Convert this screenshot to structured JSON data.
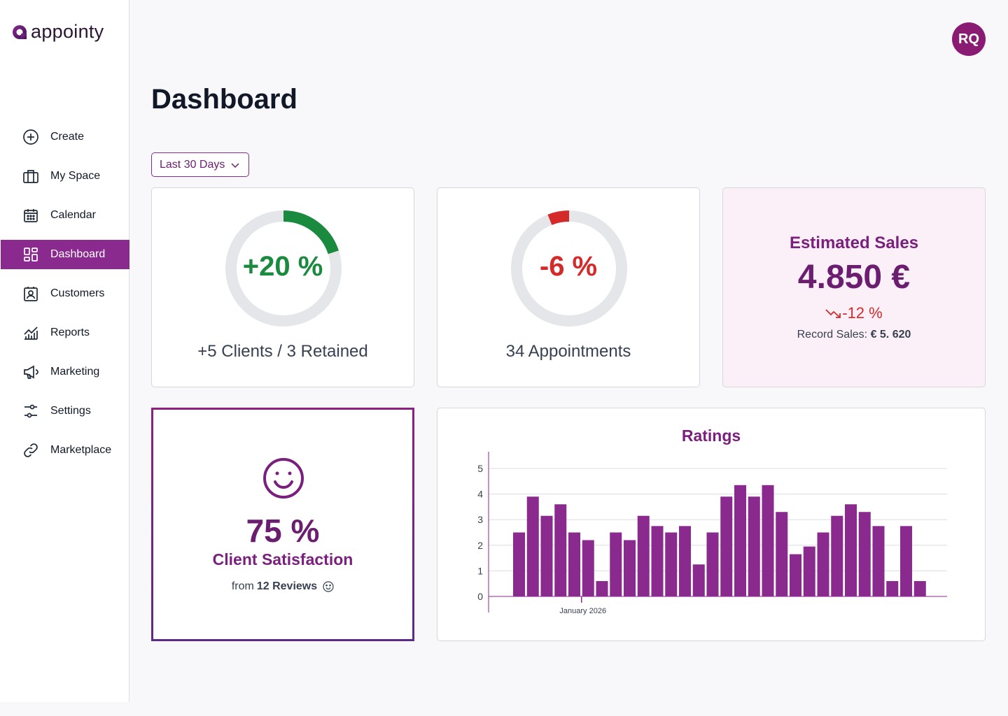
{
  "app": {
    "name": "appointy"
  },
  "colors": {
    "brand": "#8a2a8e",
    "green": "#1a8a3e",
    "red": "#d42a2a",
    "track": "#e5e6ea"
  },
  "sidebar": {
    "items": [
      {
        "label": "Create",
        "icon": "plus-circle-icon"
      },
      {
        "label": "My Space",
        "icon": "briefcase-icon"
      },
      {
        "label": "Calendar",
        "icon": "calendar-icon"
      },
      {
        "label": "Dashboard",
        "icon": "grid-icon",
        "active": true
      },
      {
        "label": "Customers",
        "icon": "contact-icon"
      },
      {
        "label": "Reports",
        "icon": "chart-icon"
      },
      {
        "label": "Marketing",
        "icon": "megaphone-icon"
      },
      {
        "label": "Settings",
        "icon": "sliders-icon"
      },
      {
        "label": "Marketplace",
        "icon": "link-icon"
      }
    ]
  },
  "header": {
    "avatar_initials": "RQ",
    "title": "Dashboard"
  },
  "filter": {
    "range_label": "Last 30 Days"
  },
  "clients_card": {
    "percent_label": "+20 %",
    "fraction": 0.2,
    "caption": "+5 Clients / 3 Retained"
  },
  "appointments_card": {
    "percent_label": "-6 %",
    "fraction": 0.06,
    "caption": "34 Appointments"
  },
  "sales_card": {
    "title": "Estimated Sales",
    "value": "4.850 €",
    "change": "-12 %",
    "record_label": "Record Sales:",
    "record_value": "€ 5. 620"
  },
  "satisfaction_card": {
    "value": "75 %",
    "label": "Client Satisfaction",
    "from_label": "from",
    "reviews": "12 Reviews"
  },
  "chart_data": {
    "type": "bar",
    "title": "Ratings",
    "xlabel": "",
    "ylabel": "",
    "ylim": [
      0,
      5.5
    ],
    "yticks": [
      0,
      1,
      2,
      3,
      4,
      5
    ],
    "x_tick_label": "January 2026",
    "x_tick_index": 3,
    "values": [
      2.5,
      3.9,
      3.15,
      3.6,
      2.5,
      2.2,
      0.6,
      2.5,
      2.2,
      3.15,
      2.75,
      2.5,
      2.75,
      1.25,
      2.5,
      3.9,
      4.35,
      3.9,
      4.35,
      3.3,
      1.65,
      1.95,
      2.5,
      3.15,
      3.6,
      3.3,
      2.75,
      0.6,
      2.75,
      0.6
    ]
  }
}
